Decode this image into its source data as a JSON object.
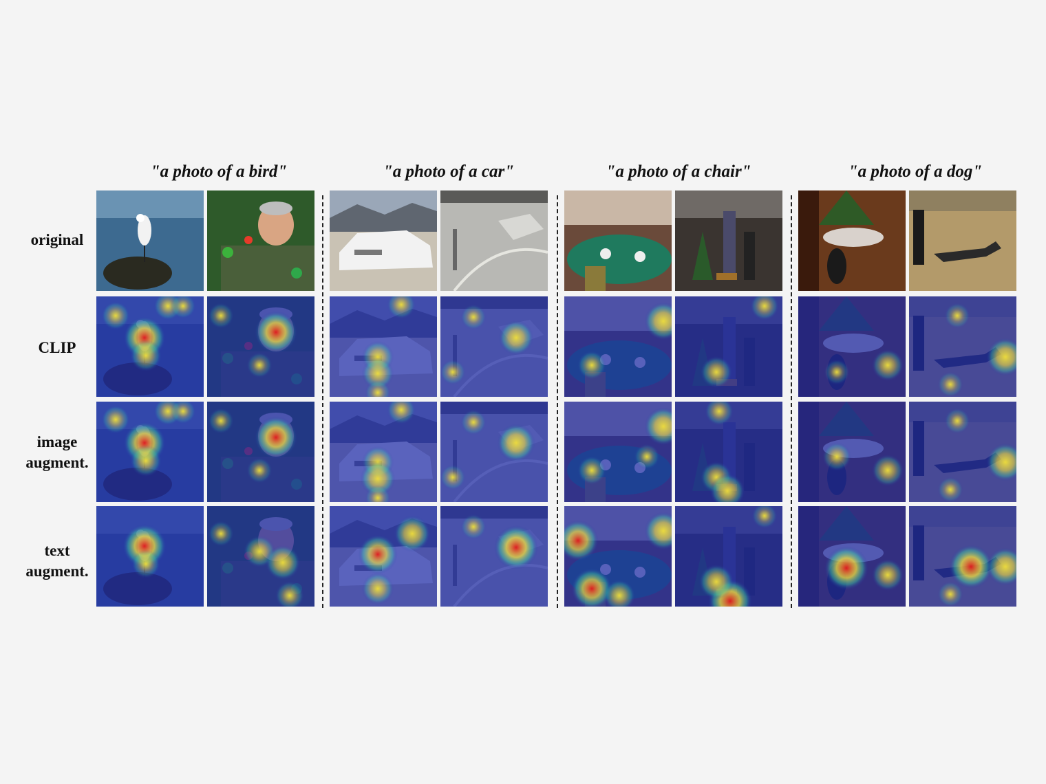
{
  "figure": {
    "groups": [
      {
        "caption": "\"a photo of a bird\"",
        "images": [
          "egret-on-rock",
          "man-with-parrots"
        ]
      },
      {
        "caption": "\"a photo of a car\"",
        "images": [
          "white-sedan",
          "silver-car-street"
        ]
      },
      {
        "caption": "\"a photo of a chair\"",
        "images": [
          "dining-room",
          "party-room"
        ]
      },
      {
        "caption": "\"a photo of a dog\"",
        "images": [
          "dog-by-christmas-tree",
          "greyhound-running"
        ]
      }
    ],
    "rows": [
      {
        "lines": [
          "original"
        ],
        "kind": "photo"
      },
      {
        "lines": [
          "CLIP"
        ],
        "kind": "heatmap"
      },
      {
        "lines": [
          "image",
          "augment."
        ],
        "kind": "heatmap"
      },
      {
        "lines": [
          "text",
          "augment."
        ],
        "kind": "heatmap"
      }
    ],
    "colors": {
      "background": "#f4f4f4",
      "heatmap_base": "#1e2ba8",
      "heatmap_hot": "#e41a1c",
      "heatmap_warm": "#f2e03a",
      "heatmap_mid": "#3fd0a0",
      "divider": "#222222"
    }
  }
}
